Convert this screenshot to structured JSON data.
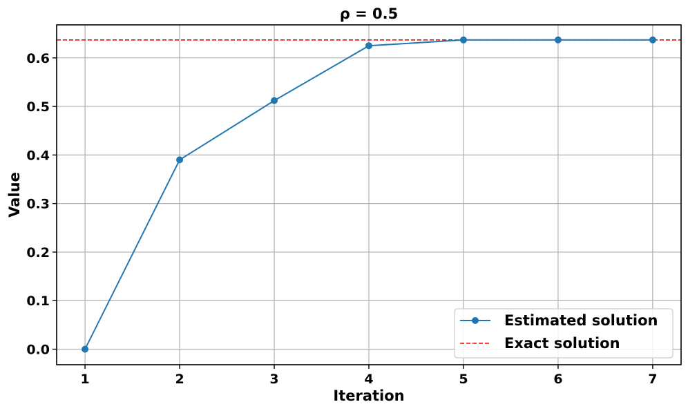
{
  "chart_data": {
    "type": "line",
    "title": "ρ = 0.5",
    "xlabel": "Iteration",
    "ylabel": "Value",
    "xlim": [
      0.7,
      7.3
    ],
    "ylim": [
      -0.032,
      0.668
    ],
    "x_ticks": [
      1,
      2,
      3,
      4,
      5,
      6,
      7
    ],
    "x_tick_labels": [
      "1",
      "2",
      "3",
      "4",
      "5",
      "6",
      "7"
    ],
    "y_ticks": [
      0.0,
      0.1,
      0.2,
      0.3,
      0.4,
      0.5,
      0.6
    ],
    "y_tick_labels": [
      "0.0",
      "0.1",
      "0.2",
      "0.3",
      "0.4",
      "0.5",
      "0.6"
    ],
    "grid": true,
    "legend_position": "lower-right",
    "series": [
      {
        "name": "Estimated solution",
        "style": "solid-line-circle-markers",
        "color": "#1f77b4",
        "x": [
          1,
          2,
          3,
          4,
          5,
          6,
          7
        ],
        "y": [
          0.0,
          0.39,
          0.512,
          0.625,
          0.637,
          0.637,
          0.637
        ]
      }
    ],
    "reference_lines": [
      {
        "name": "Exact solution",
        "orientation": "horizontal",
        "style": "dashed",
        "color": "#ff0000",
        "y": 0.637
      }
    ]
  }
}
